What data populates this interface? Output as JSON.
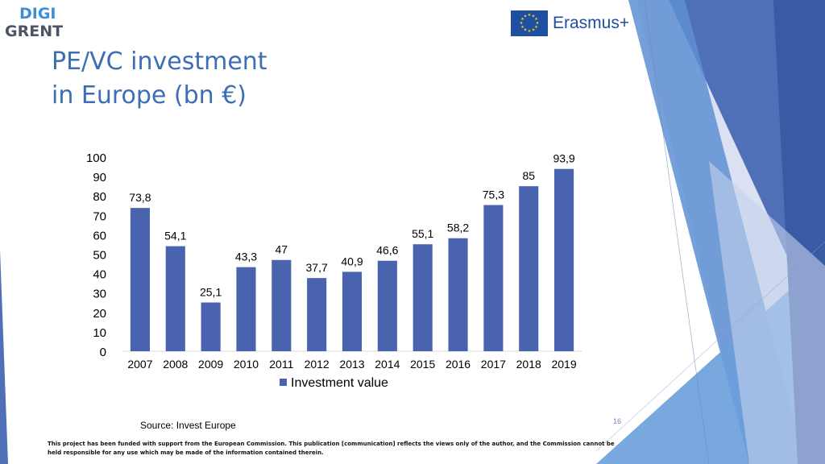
{
  "logo": {
    "line1": "DIGI",
    "line2": "GRENT"
  },
  "funder_logo": {
    "text": "Erasmus+"
  },
  "slide": {
    "title_line1": "PE/VC investment",
    "title_line2": "in Europe (bn €)",
    "source": "Source: Invest Europe",
    "page_number": "16",
    "disclaimer": "This project has been funded with support from the European Commission. This publication [communication] reflects the views only of the author, and the Commission cannot be held responsible for any use which may be made of the information contained therein."
  },
  "colors": {
    "bar": "#4a63ae",
    "title": "#3d6db5",
    "deco_dark": "#3b5aa4",
    "deco_mid": "#5b8ed1",
    "deco_light": "#b7c6e6"
  },
  "chart_data": {
    "type": "bar",
    "categories": [
      "2007",
      "2008",
      "2009",
      "2010",
      "2011",
      "2012",
      "2013",
      "2014",
      "2015",
      "2016",
      "2017",
      "2018",
      "2019"
    ],
    "series": [
      {
        "name": "Investment value",
        "values": [
          73.8,
          54.1,
          25.1,
          43.3,
          47,
          37.7,
          40.9,
          46.6,
          55.1,
          58.2,
          75.3,
          85,
          93.9
        ],
        "labels": [
          "73,8",
          "54,1",
          "25,1",
          "43,3",
          "47",
          "37,7",
          "40,9",
          "46,6",
          "55,1",
          "58,2",
          "75,3",
          "85",
          "93,9"
        ]
      }
    ],
    "yticks": [
      "0",
      "10",
      "20",
      "30",
      "40",
      "50",
      "60",
      "70",
      "80",
      "90",
      "100"
    ],
    "ylim": [
      0,
      100
    ],
    "grid": false,
    "legend": "bottom"
  }
}
